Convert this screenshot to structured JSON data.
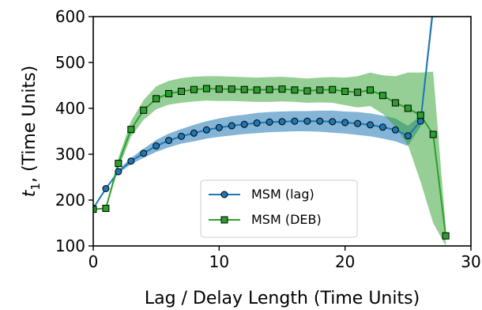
{
  "chart_data": {
    "type": "line",
    "xlabel": "Lag / Delay Length (Time Units)",
    "ylabel_main": "t",
    "ylabel_sub": "1",
    "ylabel_rest": ", (Time Units)",
    "xlim": [
      0,
      30
    ],
    "ylim": [
      100,
      600
    ],
    "xticks": [
      0,
      10,
      20,
      30
    ],
    "yticks": [
      100,
      200,
      300,
      400,
      500,
      600
    ],
    "grid": false,
    "legend_position": "lower-center",
    "series": [
      {
        "name": "MSM (lag)",
        "color": "#1f77b4",
        "band_color": "#1f77b4",
        "marker": "circle",
        "points": [
          [
            0,
            182
          ],
          [
            1,
            225
          ],
          [
            2,
            262
          ],
          [
            3,
            285
          ],
          [
            4,
            302
          ],
          [
            5,
            318
          ],
          [
            6,
            330
          ],
          [
            7,
            339
          ],
          [
            8,
            346
          ],
          [
            9,
            353
          ],
          [
            10,
            358
          ],
          [
            11,
            362
          ],
          [
            12,
            365
          ],
          [
            13,
            368
          ],
          [
            14,
            370
          ],
          [
            15,
            371
          ],
          [
            16,
            372
          ],
          [
            17,
            372
          ],
          [
            18,
            372
          ],
          [
            19,
            371
          ],
          [
            20,
            369
          ],
          [
            21,
            367
          ],
          [
            22,
            364
          ],
          [
            23,
            359
          ],
          [
            24,
            353
          ],
          [
            25,
            340
          ],
          [
            26,
            372
          ],
          [
            27,
            620
          ]
        ],
        "band": [
          [
            0,
            182,
            182
          ],
          [
            1,
            225,
            225
          ],
          [
            2,
            258,
            266
          ],
          [
            3,
            278,
            292
          ],
          [
            4,
            292,
            312
          ],
          [
            5,
            305,
            331
          ],
          [
            6,
            315,
            345
          ],
          [
            7,
            323,
            355
          ],
          [
            8,
            328,
            364
          ],
          [
            9,
            334,
            372
          ],
          [
            10,
            338,
            378
          ],
          [
            11,
            341,
            383
          ],
          [
            12,
            344,
            386
          ],
          [
            13,
            346,
            390
          ],
          [
            14,
            348,
            392
          ],
          [
            15,
            349,
            393
          ],
          [
            16,
            350,
            394
          ],
          [
            17,
            350,
            394
          ],
          [
            18,
            349,
            395
          ],
          [
            19,
            347,
            395
          ],
          [
            20,
            345,
            393
          ],
          [
            21,
            342,
            392
          ],
          [
            22,
            339,
            389
          ],
          [
            23,
            334,
            384
          ],
          [
            24,
            328,
            378
          ],
          [
            25,
            318,
            362
          ],
          [
            26,
            360,
            384
          ],
          [
            27,
            600,
            640
          ]
        ]
      },
      {
        "name": "MSM (DEB)",
        "color": "#2ca02c",
        "band_color": "#2ca02c",
        "marker": "square",
        "points": [
          [
            0,
            180
          ],
          [
            1,
            182
          ],
          [
            2,
            280
          ],
          [
            3,
            354
          ],
          [
            4,
            396
          ],
          [
            5,
            421
          ],
          [
            6,
            432
          ],
          [
            7,
            437
          ],
          [
            8,
            441
          ],
          [
            9,
            443
          ],
          [
            10,
            442
          ],
          [
            11,
            442
          ],
          [
            12,
            441
          ],
          [
            13,
            440
          ],
          [
            14,
            441
          ],
          [
            15,
            442
          ],
          [
            16,
            440
          ],
          [
            17,
            438
          ],
          [
            18,
            440
          ],
          [
            19,
            441
          ],
          [
            20,
            437
          ],
          [
            21,
            435
          ],
          [
            22,
            440
          ],
          [
            23,
            428
          ],
          [
            24,
            412
          ],
          [
            25,
            400
          ],
          [
            26,
            385
          ],
          [
            27,
            343
          ],
          [
            28,
            122
          ]
        ],
        "band": [
          [
            0,
            180,
            180
          ],
          [
            1,
            180,
            184
          ],
          [
            2,
            268,
            292
          ],
          [
            3,
            338,
            372
          ],
          [
            4,
            375,
            418
          ],
          [
            5,
            398,
            448
          ],
          [
            6,
            408,
            460
          ],
          [
            7,
            412,
            466
          ],
          [
            8,
            415,
            469
          ],
          [
            9,
            417,
            470
          ],
          [
            10,
            416,
            470
          ],
          [
            11,
            416,
            469
          ],
          [
            12,
            415,
            468
          ],
          [
            13,
            414,
            467
          ],
          [
            14,
            414,
            468
          ],
          [
            15,
            415,
            469
          ],
          [
            16,
            414,
            467
          ],
          [
            17,
            412,
            465
          ],
          [
            18,
            413,
            467
          ],
          [
            19,
            412,
            468
          ],
          [
            20,
            407,
            467
          ],
          [
            21,
            402,
            470
          ],
          [
            22,
            405,
            478
          ],
          [
            23,
            388,
            472
          ],
          [
            24,
            360,
            470
          ],
          [
            25,
            320,
            478
          ],
          [
            26,
            240,
            478
          ],
          [
            27,
            150,
            480
          ],
          [
            28,
            100,
            140
          ]
        ]
      }
    ]
  }
}
